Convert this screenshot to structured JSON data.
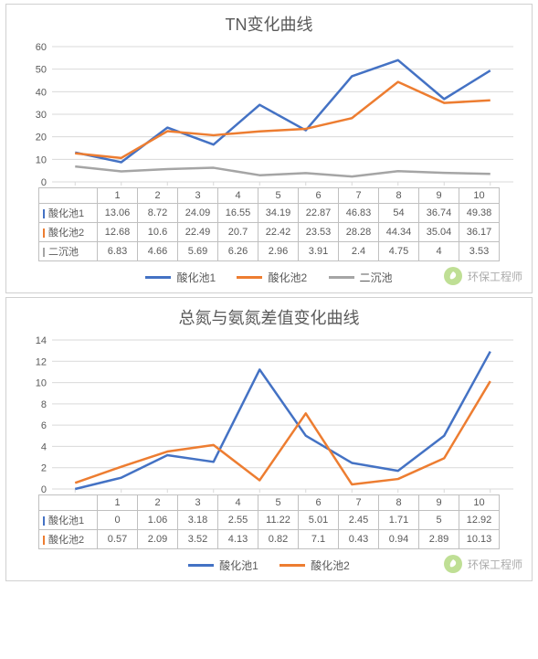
{
  "watermark": {
    "text": "环保工程师"
  },
  "chart1": {
    "type": "line",
    "title": "TN变化曲线",
    "title_fontsize": 18,
    "title_color": "#595959",
    "background_color": "#ffffff",
    "border_color": "#d0d0d0",
    "categories": [
      "1",
      "2",
      "3",
      "4",
      "5",
      "6",
      "7",
      "8",
      "9",
      "10"
    ],
    "ylim": [
      0,
      60
    ],
    "ytick_step": 10,
    "yticks": [
      0,
      10,
      20,
      30,
      40,
      50,
      60
    ],
    "grid_color": "#d9d9d9",
    "label_fontsize": 11,
    "label_color": "#595959",
    "line_width": 2.5,
    "series": [
      {
        "name": "酸化池1",
        "color": "#4472c4",
        "data": [
          13.06,
          8.72,
          24.09,
          16.55,
          34.19,
          22.87,
          46.83,
          54,
          36.74,
          49.38
        ]
      },
      {
        "name": "酸化池2",
        "color": "#ed7d31",
        "data": [
          12.68,
          10.6,
          22.49,
          20.7,
          22.42,
          23.53,
          28.28,
          44.34,
          35.04,
          36.17
        ]
      },
      {
        "name": "二沉池",
        "color": "#a5a5a5",
        "data": [
          6.83,
          4.66,
          5.69,
          6.26,
          2.96,
          3.91,
          2.4,
          4.75,
          4,
          3.53
        ]
      }
    ]
  },
  "chart2": {
    "type": "line",
    "title": "总氮与氨氮差值变化曲线",
    "title_fontsize": 18,
    "title_color": "#595959",
    "background_color": "#ffffff",
    "border_color": "#d0d0d0",
    "categories": [
      "1",
      "2",
      "3",
      "4",
      "5",
      "6",
      "7",
      "8",
      "9",
      "10"
    ],
    "ylim": [
      0,
      14
    ],
    "ytick_step": 2,
    "yticks": [
      0,
      2,
      4,
      6,
      8,
      10,
      12,
      14
    ],
    "grid_color": "#d9d9d9",
    "label_fontsize": 11,
    "label_color": "#595959",
    "line_width": 2.5,
    "series": [
      {
        "name": "酸化池1",
        "color": "#4472c4",
        "data": [
          0,
          1.06,
          3.18,
          2.55,
          11.22,
          5.01,
          2.45,
          1.71,
          5,
          12.92
        ]
      },
      {
        "name": "酸化池2",
        "color": "#ed7d31",
        "data": [
          0.57,
          2.09,
          3.52,
          4.13,
          0.82,
          7.1,
          0.43,
          0.94,
          2.89,
          10.13
        ]
      }
    ]
  }
}
